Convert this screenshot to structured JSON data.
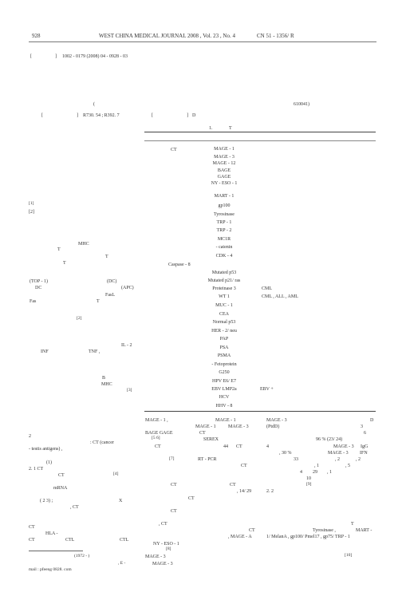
{
  "header": {
    "page_no": "928",
    "journal": "WEST CHINA MEDICAL JOURNAL 2008 , Vol. 23 , No. 4",
    "cn": "CN 51 - 1356/ R"
  },
  "doc_ids": {
    "bracket_left": "[",
    "bracket_right": "]",
    "issn": "1002 - 0179 (2008) 04 - 0928 - 03"
  },
  "classification": {
    "left_bracket": "[",
    "right_bracket": "]",
    "codes": "R730. 54 ; R392. 7",
    "doc_bracket": "[",
    "doc_bracket_right": "]",
    "doc_code": "D",
    "postcode": "610041)",
    "open_paren": "("
  },
  "table": {
    "caption": "1.",
    "caption_T": "T",
    "col_head": "CT",
    "antigens": [
      "MAGE - 1",
      "MAGE - 3",
      "MAGE - 12",
      "BAGE",
      "GAGE",
      "NY - ESO - 1",
      "",
      "MART - 1",
      "gp100",
      "Tyrosinase",
      "TRP - 1",
      "TRP - 2",
      "MC1R",
      "- catenin",
      "CDK - 4",
      "Caspase - 8",
      "Mutated p53",
      "Mutated p21/ ras",
      "Proteinase 3",
      "WT 1",
      "MUC - 1",
      "CEA",
      "Normal p53",
      "HER - 2/ neu",
      "PAP",
      "PSA",
      "PSMA",
      "- Fetoprotein",
      "G250",
      "HPV E6/ E7",
      "EBV LMP2a",
      "HCV",
      "HHV - 8"
    ],
    "right_notes": {
      "cml": "CML",
      "cml_all": "CML , ALL , AML",
      "ebv": "EBV +"
    }
  },
  "left_column": {
    "ref1": "[1]",
    "ref2": "[2]",
    "mhc1": "MHC",
    "t1": "T",
    "t2": "T",
    "t3": "T",
    "top1": "(TOP - 1)",
    "dc": "(DC)",
    "dc2": "DC",
    "apc": "(APC)",
    "fasl": "FasL",
    "fas": "Fas",
    "t4": "T",
    "il2": "IL - 2",
    "inf1": "INF",
    "tnf": "TNF ,",
    "b": "B",
    "mhc2": "MHC",
    "ref3": "[3]",
    "two": "2",
    "ct_cancer": ": CT (cancer",
    "testis": "- testis antigens) ,",
    "one": "(1)",
    "s21": "2. 1 CT",
    "ct2": "CT",
    "ref4": "[4]",
    "mrna": "mRNA",
    "paren23": "( 2 3) ;",
    "x": "X",
    "ct3": ", CT",
    "ct4": "CT",
    "hla": "HLA -",
    "ctl1": "CT",
    "ctl2": "CTL",
    "ctl3": "CTL",
    "foot_year": "(1972 - )",
    "foot_email": "mail : pfeeng 0828. com",
    "foot_e": ", E -"
  },
  "bottom_mid": {
    "l1": "MAGE - 1 ,",
    "l1b": "MAGE - 1",
    "l2a": "MAGE - 1",
    "l2b": "MAGE - 3",
    "l3a": "BAGE  GAGE",
    "l3b": "CT",
    "ref56": "[5 6]",
    "serex": "SEREX",
    "ct44": "CT",
    "n44": "44",
    "ct44b": "CT",
    "ref7": "[7]",
    "rtpcr": "RT - PCR",
    "ct5": "CT",
    "ct6": "CT",
    "ct7": "CT",
    "ratio": ", 14/ 29",
    "n22": "2. 2",
    "ct8": "CT",
    "ct9": "CT",
    "ct10": ", CT",
    "ct11": "CT",
    "magea": ", MAGE - A",
    "nyeso": "NY - ESO - 1",
    "ref8": "[8]",
    "mage3a": "MAGE - 3",
    "mage3b": "MAGE - 3"
  },
  "bottom_right": {
    "mage3": "MAGE - 3",
    "d": "D",
    "ptd": "(PtdD)",
    "three": "3",
    "six": "6",
    "pct": "96 % (23/ 24)",
    "four": "4",
    "mage3c": "MAGE - 3",
    "igg": "IgG",
    "thirty": ", 30 %",
    "mage3d": "MAGE - 3",
    "ifn": "IFN",
    "n33": "33",
    "n2": ", 2",
    "n2b": ", 2",
    "n1": ", 1",
    "n5": ", 5",
    "n4": "4",
    "n29": "29",
    "n1b": ", 1",
    "n10": "10",
    "ref9": "[9]",
    "t": "T",
    "tyro": "Tyrosinase ,",
    "mart": "MART -",
    "mart_line": "1/ MelanA , gp100/ Pmel17 , gp75/ TRP - 1",
    "ref10": "[10]"
  }
}
